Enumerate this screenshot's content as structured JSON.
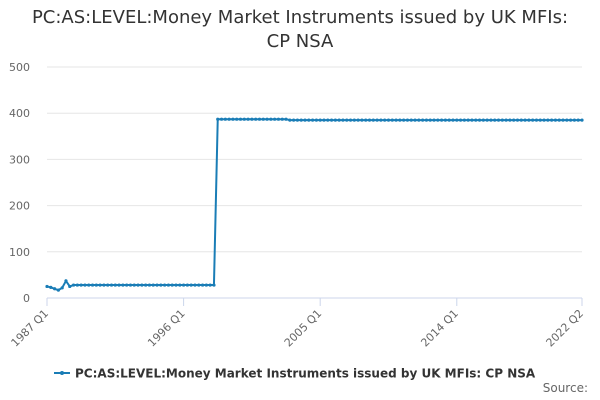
{
  "chart_data": {
    "type": "line",
    "title": "PC:AS:LEVEL:Money Market Instruments issued by UK MFIs: CP NSA",
    "categories": [
      "1987 Q1",
      null,
      null,
      null,
      null,
      null,
      null,
      null,
      null,
      null,
      null,
      null,
      null,
      null,
      null,
      null,
      null,
      null,
      null,
      null,
      null,
      null,
      null,
      null,
      null,
      null,
      null,
      null,
      null,
      null,
      null,
      null,
      null,
      null,
      null,
      null,
      "1996 Q1",
      null,
      null,
      null,
      null,
      null,
      null,
      null,
      null,
      null,
      null,
      null,
      null,
      null,
      null,
      null,
      null,
      null,
      null,
      null,
      null,
      null,
      null,
      null,
      null,
      null,
      null,
      null,
      null,
      null,
      null,
      null,
      null,
      null,
      null,
      null,
      "2005 Q1",
      null,
      null,
      null,
      null,
      null,
      null,
      null,
      null,
      null,
      null,
      null,
      null,
      null,
      null,
      null,
      null,
      null,
      null,
      null,
      null,
      null,
      null,
      null,
      null,
      null,
      null,
      null,
      null,
      null,
      null,
      null,
      null,
      null,
      null,
      null,
      "2014 Q1",
      null,
      null,
      null,
      null,
      null,
      null,
      null,
      null,
      null,
      null,
      null,
      null,
      null,
      null,
      null,
      null,
      null,
      null,
      null,
      null,
      null,
      null,
      null,
      null,
      null,
      null,
      null,
      null,
      null,
      null,
      null,
      null,
      "2022 Q2"
    ],
    "series": [
      {
        "name": "PC:AS:LEVEL:Money Market Instruments issued by UK MFIs: CP NSA",
        "color": "#1a7db6",
        "values": [
          25,
          23,
          20,
          17,
          22,
          37,
          25,
          28,
          28,
          28,
          28,
          28,
          28,
          28,
          28,
          28,
          28,
          28,
          28,
          28,
          28,
          28,
          28,
          28,
          28,
          28,
          28,
          28,
          28,
          28,
          28,
          28,
          28,
          28,
          28,
          28,
          28,
          28,
          28,
          28,
          28,
          28,
          28,
          28,
          28,
          387,
          387,
          387,
          387,
          387,
          387,
          387,
          387,
          387,
          387,
          387,
          387,
          387,
          387,
          387,
          387,
          387,
          387,
          387,
          385,
          385,
          385,
          385,
          385,
          385,
          385,
          385,
          385,
          385,
          385,
          385,
          385,
          385,
          385,
          385,
          385,
          385,
          385,
          385,
          385,
          385,
          385,
          385,
          385,
          385,
          385,
          385,
          385,
          385,
          385,
          385,
          385,
          385,
          385,
          385,
          385,
          385,
          385,
          385,
          385,
          385,
          385,
          385,
          385,
          385,
          385,
          385,
          385,
          385,
          385,
          385,
          385,
          385,
          385,
          385,
          385,
          385,
          385,
          385,
          385,
          385,
          385,
          385,
          385,
          385,
          385,
          385,
          385,
          385,
          385,
          385,
          385,
          385,
          385,
          385,
          385,
          385
        ]
      }
    ],
    "ylim": [
      0,
      500
    ],
    "yticks": [
      0,
      100,
      200,
      300,
      400,
      500
    ],
    "grid": true,
    "legend": "bottom",
    "source": "Source:"
  }
}
